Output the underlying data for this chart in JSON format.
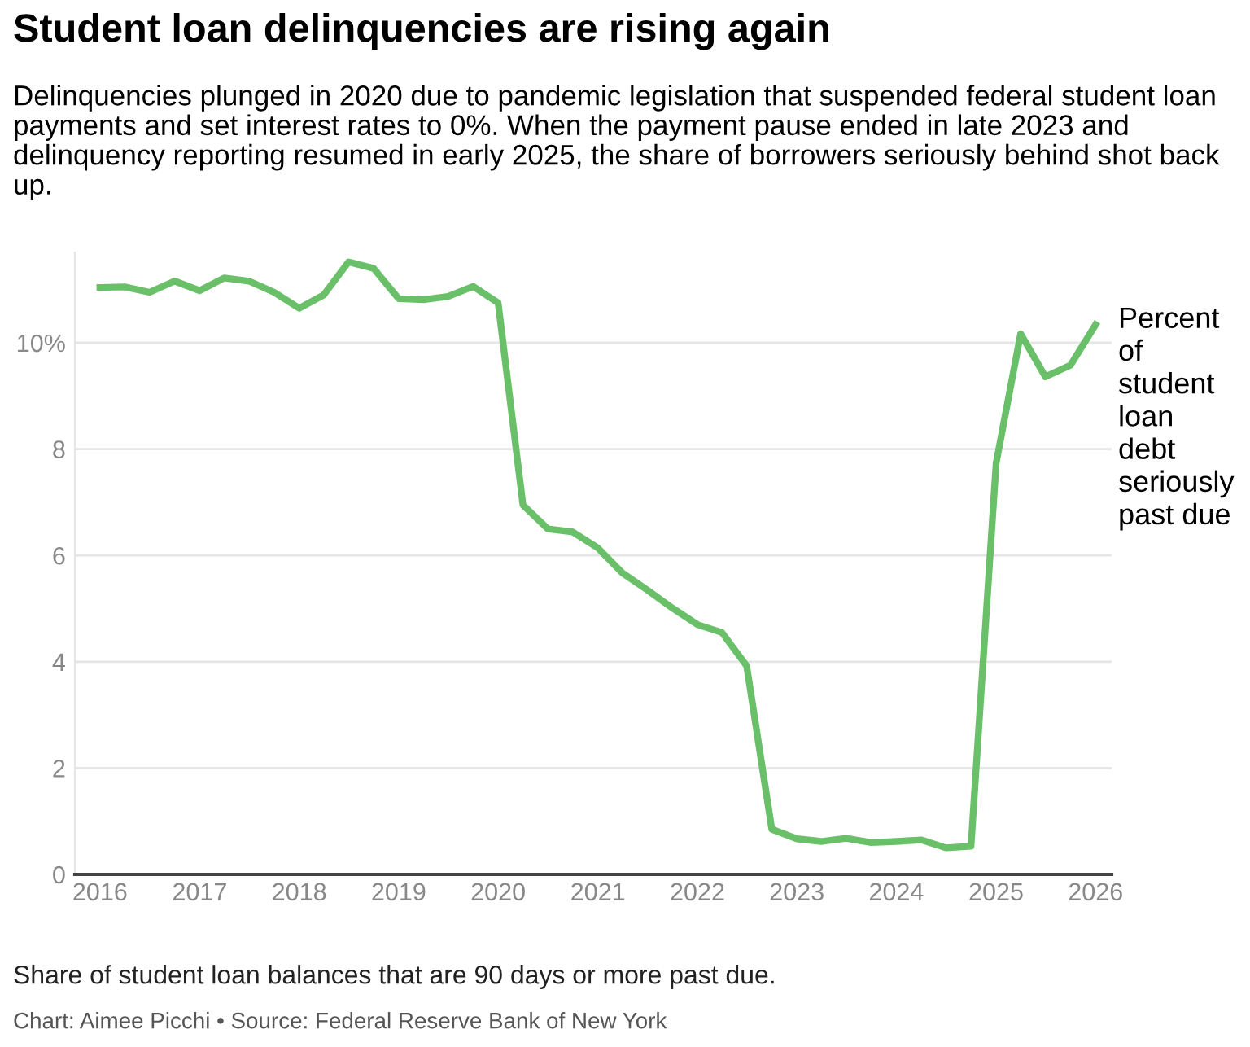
{
  "chart_data": {
    "type": "line",
    "title": "Student loan delinquencies are rising again",
    "subtitle": "Delinquencies plunged in 2020 due to pandemic legislation that suspended federal student loan payments and set interest rates to 0%. When the payment pause ended in late 2023 and delinquency reporting resumed in early 2025, the share of borrowers seriously behind shot back up.",
    "annotations": [
      "Share of student loan balances that are 90 days or more past due.",
      "Chart: Aimee Picchi • Source: Federal Reserve Bank of New York"
    ],
    "x": [
      "2016-01",
      "2016-04",
      "2016-07",
      "2016-10",
      "2017-01",
      "2017-04",
      "2017-07",
      "2017-10",
      "2018-01",
      "2018-04",
      "2018-07",
      "2018-10",
      "2019-01",
      "2019-04",
      "2019-07",
      "2019-10",
      "2020-01",
      "2020-04",
      "2020-07",
      "2020-10",
      "2021-01",
      "2021-04",
      "2021-07",
      "2021-10",
      "2022-01",
      "2022-04",
      "2022-07",
      "2022-10",
      "2023-01",
      "2023-04",
      "2023-07",
      "2023-10",
      "2024-01",
      "2024-04",
      "2024-07",
      "2024-10",
      "2025-01",
      "2025-04",
      "2025-07",
      "2025-10",
      "2026-01"
    ],
    "series": [
      {
        "name": "Percent of student loan debt seriously past due",
        "color": "#6abf69",
        "values": [
          11.04,
          11.05,
          10.95,
          11.16,
          10.98,
          11.22,
          11.16,
          10.95,
          10.65,
          10.9,
          11.52,
          11.4,
          10.83,
          10.81,
          10.87,
          11.06,
          10.75,
          6.95,
          6.5,
          6.44,
          6.14,
          5.67,
          5.35,
          5.01,
          4.7,
          4.55,
          3.92,
          0.85,
          0.67,
          0.62,
          0.68,
          0.6,
          0.62,
          0.65,
          0.5,
          0.53,
          7.73,
          10.17,
          9.36,
          9.58,
          10.34
        ]
      }
    ],
    "xlim": [
      "2015-10",
      "2026-03"
    ],
    "xticks": [
      "2016",
      "2017",
      "2018",
      "2019",
      "2020",
      "2021",
      "2022",
      "2023",
      "2024",
      "2025",
      "2026"
    ],
    "ylim": [
      0,
      11.7
    ],
    "yticks": [
      0,
      2,
      4,
      6,
      8,
      {
        "value": 10,
        "label": "10%"
      }
    ],
    "grid": "y",
    "legend": false,
    "marker": "none",
    "line_style": "solid"
  }
}
